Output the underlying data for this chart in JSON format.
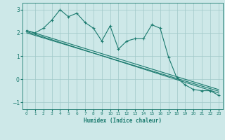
{
  "xlabel": "Humidex (Indice chaleur)",
  "bg_color": "#cde8e8",
  "line_color": "#1a7a6e",
  "grid_color": "#a0c8c8",
  "xlim": [
    -0.5,
    23.5
  ],
  "ylim": [
    -1.3,
    3.3
  ],
  "yticks": [
    -1,
    0,
    1,
    2,
    3
  ],
  "xticks": [
    0,
    1,
    2,
    3,
    4,
    5,
    6,
    7,
    8,
    9,
    10,
    11,
    12,
    13,
    14,
    15,
    16,
    17,
    18,
    19,
    20,
    21,
    22,
    23
  ],
  "data_x": [
    0,
    1,
    2,
    3,
    4,
    5,
    6,
    7,
    8,
    9,
    10,
    11,
    12,
    13,
    14,
    15,
    16,
    17,
    18,
    19,
    20,
    21,
    22,
    23
  ],
  "data_y": [
    2.1,
    2.0,
    2.2,
    2.55,
    3.0,
    2.7,
    2.85,
    2.45,
    2.2,
    1.65,
    2.3,
    1.3,
    1.65,
    1.75,
    1.75,
    2.35,
    2.2,
    0.95,
    0.05,
    -0.25,
    -0.45,
    -0.5,
    -0.5,
    -0.7
  ],
  "trend1_x": [
    0,
    23
  ],
  "trend1_y": [
    2.1,
    -0.45
  ],
  "trend2_x": [
    0,
    23
  ],
  "trend2_y": [
    2.05,
    -0.6
  ],
  "trend3_x": [
    0,
    23
  ],
  "trend3_y": [
    2.0,
    -0.52
  ]
}
